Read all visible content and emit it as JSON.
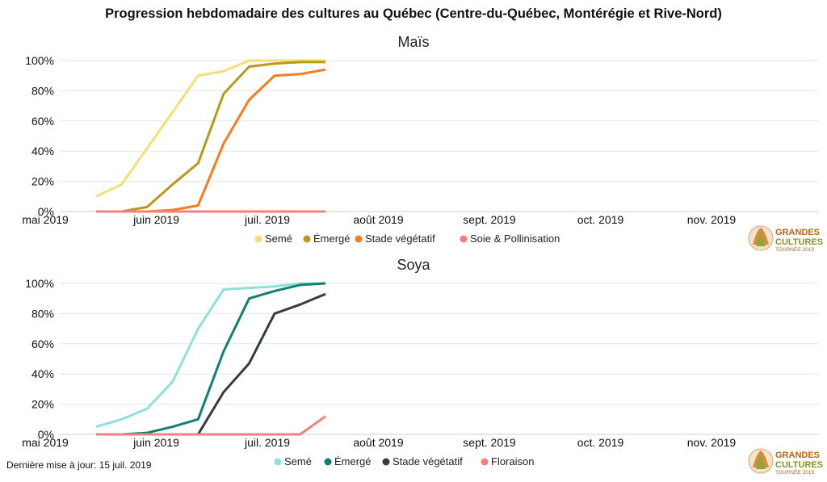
{
  "title": "Progression hebdomadaire des cultures au Québec (Centre-du-Québec, Montérégie et Rive-Nord)",
  "updated": "Dernière mise à jour: 15 juil. 2019",
  "logo": {
    "line1": "GRANDES",
    "line2": "CULTURES",
    "line3": "TOURNÉE 2019"
  },
  "chart_data": [
    {
      "type": "line",
      "title": "Maïs",
      "x_ticks": [
        "mai 2019",
        "juin 2019",
        "juil. 2019",
        "août 2019",
        "sept. 2019",
        "oct. 2019",
        "nov. 2019"
      ],
      "y_ticks": [
        "0%",
        "20%",
        "40%",
        "60%",
        "80%",
        "100%"
      ],
      "ylim": [
        0,
        100
      ],
      "xlim": [
        "2019-05-01",
        "2019-11-30"
      ],
      "grid": true,
      "legend_position": "bottom",
      "x": [
        "2019-05-15",
        "2019-05-22",
        "2019-05-29",
        "2019-06-05",
        "2019-06-12",
        "2019-06-19",
        "2019-06-26",
        "2019-07-03",
        "2019-07-10",
        "2019-07-17"
      ],
      "series": [
        {
          "name": "Semé",
          "color": "#f5de74",
          "values": [
            10,
            18,
            42,
            66,
            90,
            93,
            100,
            100,
            100,
            100
          ]
        },
        {
          "name": "Émergé",
          "color": "#b9981a",
          "values": [
            0,
            0,
            3,
            18,
            32,
            78,
            96,
            98,
            99,
            99
          ]
        },
        {
          "name": "Stade végétatif",
          "color": "#f57c1f",
          "values": [
            0,
            0,
            0,
            1,
            4,
            45,
            74,
            90,
            91,
            94
          ]
        },
        {
          "name": "Soie & Pollinisation",
          "color": "#f2817c",
          "values": [
            0,
            0,
            0,
            0,
            0,
            0,
            0,
            0,
            0,
            0
          ]
        }
      ]
    },
    {
      "type": "line",
      "title": "Soya",
      "x_ticks": [
        "mai 2019",
        "juin 2019",
        "juil. 2019",
        "août 2019",
        "sept. 2019",
        "oct. 2019",
        "nov. 2019"
      ],
      "y_ticks": [
        "0%",
        "20%",
        "40%",
        "60%",
        "80%",
        "100%"
      ],
      "ylim": [
        0,
        100
      ],
      "xlim": [
        "2019-05-01",
        "2019-11-30"
      ],
      "grid": true,
      "legend_position": "bottom",
      "x": [
        "2019-05-15",
        "2019-05-22",
        "2019-05-29",
        "2019-06-05",
        "2019-06-12",
        "2019-06-19",
        "2019-06-26",
        "2019-07-03",
        "2019-07-10",
        "2019-07-17"
      ],
      "series": [
        {
          "name": "Semé",
          "color": "#8fe0db",
          "values": [
            5,
            10,
            17,
            35,
            70,
            96,
            97,
            98,
            100,
            100
          ]
        },
        {
          "name": "Émergé",
          "color": "#127f72",
          "values": [
            0,
            0,
            1,
            5,
            10,
            55,
            90,
            95,
            99,
            100
          ]
        },
        {
          "name": "Stade végétatif",
          "color": "#333d42",
          "values": [
            0,
            0,
            0,
            0,
            0,
            28,
            47,
            80,
            86,
            93
          ]
        },
        {
          "name": "Floraison",
          "color": "#f2817c",
          "values": [
            0,
            0,
            0,
            0,
            0,
            0,
            0,
            0,
            0,
            12
          ]
        }
      ]
    }
  ]
}
